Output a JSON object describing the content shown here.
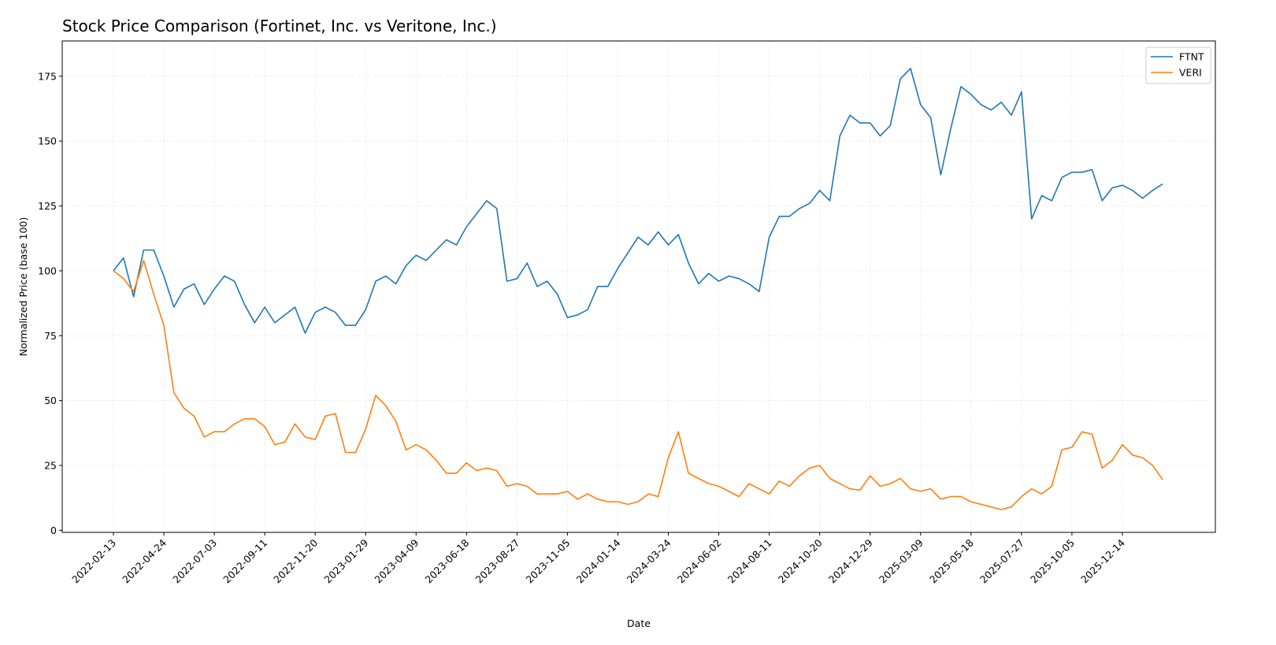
{
  "chart_data": {
    "type": "line",
    "title": "Stock Price Comparison (Fortinet, Inc. vs Veritone, Inc.)",
    "x_label": "Date",
    "y_label": "Normalized Price (base 100)",
    "x": [
      "2022-02-13",
      "2022-02-27",
      "2022-03-13",
      "2022-03-27",
      "2022-04-10",
      "2022-04-24",
      "2022-05-08",
      "2022-05-22",
      "2022-06-05",
      "2022-06-19",
      "2022-07-03",
      "2022-07-17",
      "2022-07-31",
      "2022-08-14",
      "2022-08-28",
      "2022-09-11",
      "2022-09-25",
      "2022-10-09",
      "2022-10-23",
      "2022-11-06",
      "2022-11-20",
      "2022-12-04",
      "2022-12-18",
      "2023-01-01",
      "2023-01-15",
      "2023-01-29",
      "2023-02-12",
      "2023-02-26",
      "2023-03-12",
      "2023-03-26",
      "2023-04-09",
      "2023-04-23",
      "2023-05-07",
      "2023-05-21",
      "2023-06-04",
      "2023-06-18",
      "2023-07-02",
      "2023-07-16",
      "2023-07-30",
      "2023-08-13",
      "2023-08-27",
      "2023-09-10",
      "2023-09-24",
      "2023-10-08",
      "2023-10-22",
      "2023-11-05",
      "2023-11-19",
      "2023-12-03",
      "2023-12-17",
      "2023-12-31",
      "2024-01-14",
      "2024-01-28",
      "2024-02-11",
      "2024-02-25",
      "2024-03-10",
      "2024-03-24",
      "2024-04-07",
      "2024-04-21",
      "2024-05-05",
      "2024-05-19",
      "2024-06-02",
      "2024-06-16",
      "2024-06-30",
      "2024-07-14",
      "2024-07-28",
      "2024-08-11",
      "2024-08-25",
      "2024-09-08",
      "2024-09-22",
      "2024-10-06",
      "2024-10-20",
      "2024-11-03",
      "2024-11-17",
      "2024-12-01",
      "2024-12-15",
      "2024-12-29",
      "2025-01-12",
      "2025-01-26",
      "2025-02-09",
      "2025-02-23",
      "2025-03-09",
      "2025-03-23",
      "2025-04-06",
      "2025-04-20",
      "2025-05-04",
      "2025-05-18",
      "2025-06-01",
      "2025-06-15",
      "2025-06-29",
      "2025-07-13",
      "2025-07-27",
      "2025-08-10",
      "2025-08-24",
      "2025-09-07",
      "2025-09-21",
      "2025-10-05",
      "2025-10-19",
      "2025-11-02",
      "2025-11-16",
      "2025-11-30",
      "2025-12-14",
      "2025-12-28",
      "2026-01-11",
      "2026-01-25",
      "2026-02-08"
    ],
    "series": [
      {
        "name": "FTNT",
        "color": "#1f77b4",
        "values": [
          100,
          105,
          90,
          108,
          108,
          98,
          86,
          93,
          95,
          87,
          93,
          98,
          96,
          87,
          80,
          86,
          80,
          83,
          86,
          76,
          84,
          86,
          84,
          79,
          79,
          85,
          96,
          98,
          95,
          102,
          106,
          104,
          108,
          112,
          110,
          117,
          122,
          127,
          124,
          96,
          97,
          103,
          94,
          96,
          91,
          82,
          83,
          85,
          94,
          94,
          101,
          107,
          113,
          110,
          115,
          110,
          114,
          103,
          95,
          99,
          96,
          98,
          97,
          95,
          92,
          113,
          121,
          121,
          124,
          126,
          131,
          127,
          152,
          160,
          157,
          157,
          152,
          156,
          174,
          178,
          164,
          159,
          137,
          155,
          171,
          168,
          164,
          162,
          165,
          160,
          169,
          120,
          129,
          127,
          136,
          138,
          138,
          139,
          127,
          132,
          133,
          131,
          128,
          131,
          133.5
        ]
      },
      {
        "name": "VERI",
        "color": "#ff7f0e",
        "values": [
          100,
          97,
          92,
          104,
          91,
          79,
          53,
          47,
          44,
          36,
          38,
          38,
          41,
          43,
          43,
          40,
          33,
          34,
          41,
          36,
          35,
          44,
          45,
          30,
          30,
          39,
          52,
          48,
          42,
          31,
          33,
          31,
          27,
          22,
          22,
          26,
          23,
          24,
          23,
          17,
          18,
          17,
          14,
          14,
          14,
          15,
          12,
          14,
          12,
          11,
          11,
          10,
          11,
          14,
          13,
          28,
          38,
          22,
          20,
          18,
          17,
          15,
          13,
          18,
          16,
          14,
          19,
          17,
          21,
          24,
          25,
          20,
          18,
          16,
          15.5,
          21,
          17,
          18,
          20,
          16,
          15,
          16,
          12,
          13,
          13,
          11,
          10,
          9,
          8,
          9,
          13,
          16,
          14,
          17,
          31,
          32,
          38,
          37,
          24,
          27,
          33,
          29,
          28,
          25,
          19.5
        ]
      }
    ],
    "xlim": [
      "2021-12-04",
      "2026-04-22"
    ],
    "xticks": [
      "2022-02-13",
      "2022-04-24",
      "2022-07-03",
      "2022-09-11",
      "2022-11-20",
      "2023-01-29",
      "2023-04-09",
      "2023-06-18",
      "2023-08-27",
      "2023-11-05",
      "2024-01-14",
      "2024-03-24",
      "2024-06-02",
      "2024-08-11",
      "2024-10-20",
      "2024-12-29",
      "2025-03-09",
      "2025-05-18",
      "2025-07-27",
      "2025-10-05",
      "2025-12-14"
    ],
    "ylim": [
      -0.8,
      188.6
    ],
    "yticks": [
      0,
      25,
      50,
      75,
      100,
      125,
      150,
      175
    ],
    "grid": true,
    "legend": "upper right"
  }
}
